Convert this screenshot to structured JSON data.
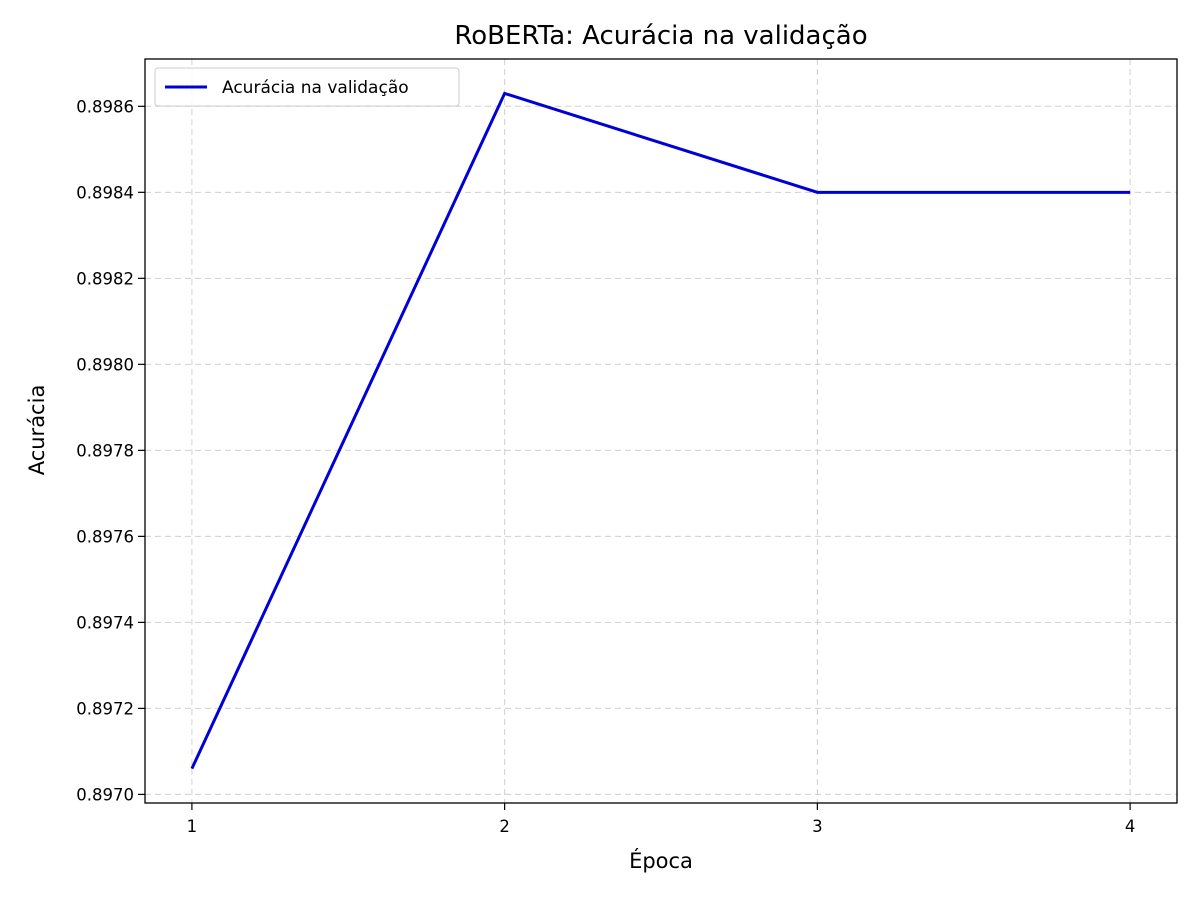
{
  "chart_data": {
    "type": "line",
    "title": "RoBERTa: Acurácia na validação",
    "xlabel": "Época",
    "ylabel": "Acurácia",
    "x": [
      1,
      2,
      3,
      4
    ],
    "series": [
      {
        "name": "Acurácia na validação",
        "values": [
          0.89706,
          0.89863,
          0.8984,
          0.8984
        ],
        "color": "#0000d6"
      }
    ],
    "xticks": [
      "1",
      "2",
      "3",
      "4"
    ],
    "yticks": [
      "0.8970",
      "0.8972",
      "0.8974",
      "0.8976",
      "0.8978",
      "0.8980",
      "0.8982",
      "0.8984",
      "0.8986"
    ],
    "xlim": [
      0.85,
      4.15
    ],
    "ylim": [
      0.89698,
      0.89871
    ],
    "grid": true,
    "legend_position": "top-left"
  }
}
